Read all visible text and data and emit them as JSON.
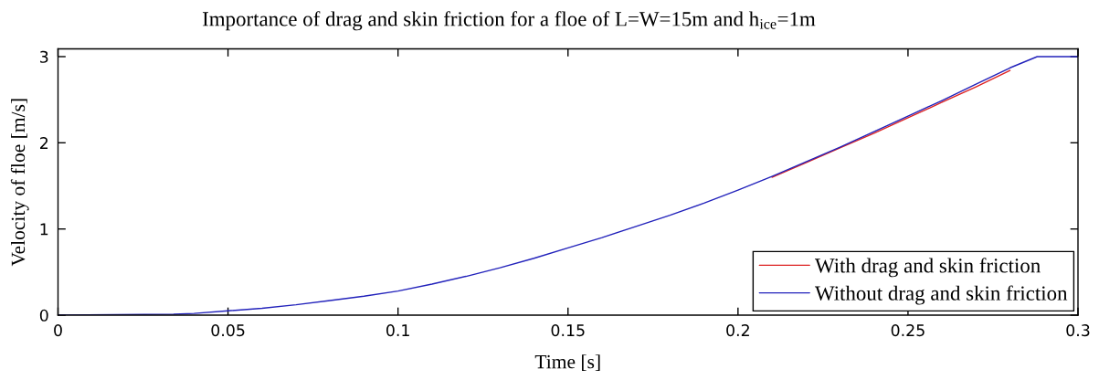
{
  "chart_data": {
    "type": "line",
    "title": "Importance of drag and skin friction for a floe of L=W=15m and h$_{ice}$=1m",
    "xlabel": "Time [s]",
    "ylabel": "Velocity of floe [m/s]",
    "xlim": [
      0,
      0.3
    ],
    "ylim": [
      0,
      3.09
    ],
    "xticks": [
      0,
      0.05,
      0.1,
      0.15,
      0.2,
      0.25,
      0.3
    ],
    "yticks": [
      0,
      1,
      2,
      3
    ],
    "grid": false,
    "legend": "bottom right",
    "marker": "none",
    "line_style": "solid",
    "x": [
      0,
      0.034,
      0.04,
      0.05,
      0.06,
      0.07,
      0.08,
      0.09,
      0.1,
      0.11,
      0.12,
      0.13,
      0.14,
      0.15,
      0.16,
      0.17,
      0.18,
      0.19,
      0.2,
      0.21,
      0.22,
      0.23,
      0.24,
      0.25,
      0.26,
      0.27,
      0.28,
      0.288,
      0.3
    ],
    "series": [
      {
        "name": "With drag and skin friction",
        "color": "#dd2222",
        "values": [
          null,
          null,
          null,
          null,
          null,
          null,
          null,
          null,
          null,
          null,
          null,
          null,
          null,
          null,
          null,
          null,
          null,
          null,
          null,
          1.6,
          1.77,
          1.94,
          2.11,
          2.29,
          2.47,
          2.65,
          2.84,
          null,
          null
        ]
      },
      {
        "name": "Without drag and skin friction",
        "color": "#2222bb",
        "values": [
          0,
          0.01,
          0.02,
          0.05,
          0.08,
          0.12,
          0.17,
          0.22,
          0.28,
          0.36,
          0.45,
          0.55,
          0.66,
          0.78,
          0.9,
          1.03,
          1.16,
          1.3,
          1.45,
          1.61,
          1.78,
          1.95,
          2.13,
          2.31,
          2.49,
          2.68,
          2.87,
          3.0,
          3.0
        ]
      }
    ]
  }
}
